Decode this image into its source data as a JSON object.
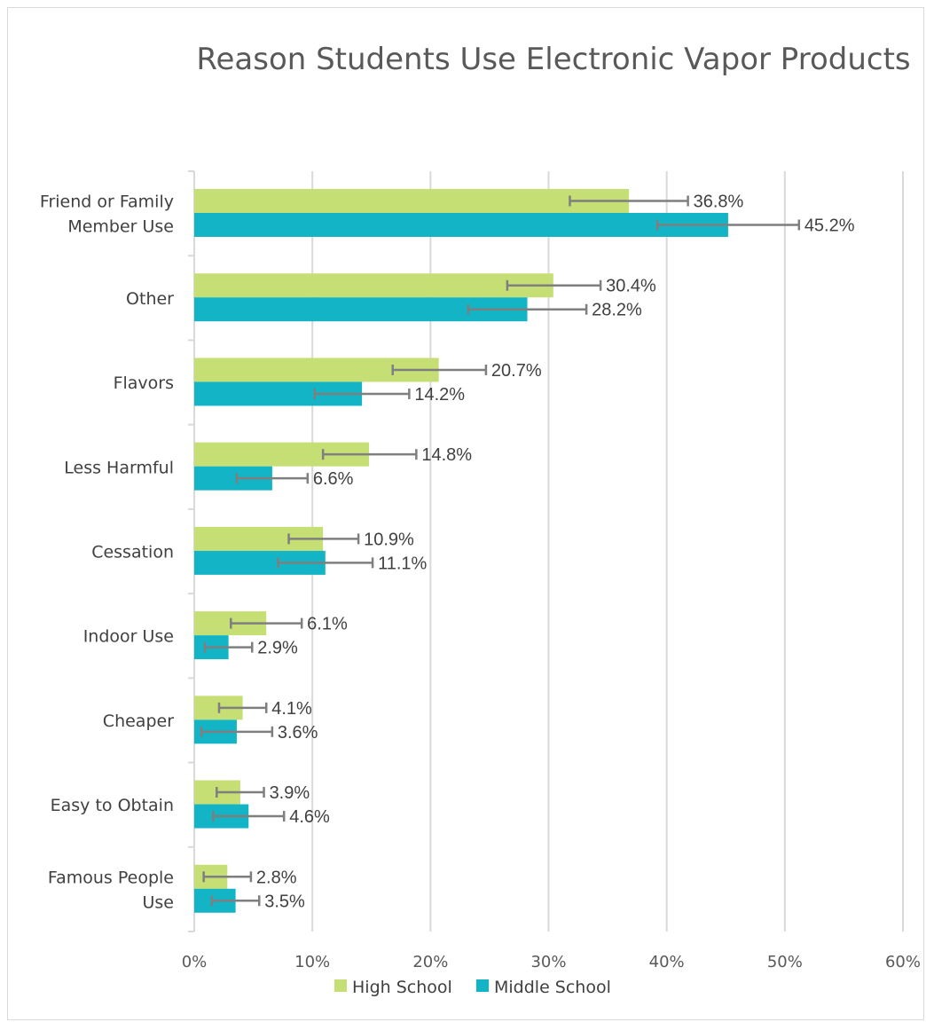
{
  "chart_data": {
    "type": "bar",
    "orientation": "horizontal",
    "title": "Reason Students Use Electronic Vapor Products",
    "xlabel": "",
    "ylabel": "",
    "xlim": [
      0,
      60
    ],
    "x_ticks": [
      "0%",
      "10%",
      "20%",
      "30%",
      "40%",
      "50%",
      "60%"
    ],
    "grid": "vertical",
    "legend": "bottom",
    "categories": [
      [
        "Friend or Family",
        "Member Use"
      ],
      [
        "Other"
      ],
      [
        "Flavors"
      ],
      [
        "Less Harmful"
      ],
      [
        "Cessation"
      ],
      [
        "Indoor Use"
      ],
      [
        "Cheaper"
      ],
      [
        "Easy to Obtain"
      ],
      [
        "Famous People",
        "Use"
      ]
    ],
    "series": [
      {
        "name": "High School",
        "color": "#c5df75",
        "values": [
          36.8,
          30.4,
          20.7,
          14.8,
          10.9,
          6.1,
          4.1,
          3.9,
          2.8
        ],
        "labels": [
          "36.8%",
          "30.4%",
          "20.7%",
          "14.8%",
          "10.9%",
          "6.1%",
          "4.1%",
          "3.9%",
          "2.8%"
        ],
        "error_low": [
          31.8,
          26.5,
          16.8,
          10.9,
          8.0,
          3.1,
          2.1,
          1.9,
          0.8
        ],
        "error_high": [
          41.8,
          34.4,
          24.7,
          18.8,
          13.9,
          9.1,
          6.1,
          5.9,
          4.8
        ]
      },
      {
        "name": "Middle School",
        "color": "#12b4c6",
        "values": [
          45.2,
          28.2,
          14.2,
          6.6,
          11.1,
          2.9,
          3.6,
          4.6,
          3.5
        ],
        "labels": [
          "45.2%",
          "28.2%",
          "14.2%",
          "6.6%",
          "11.1%",
          "2.9%",
          "3.6%",
          "4.6%",
          "3.5%"
        ],
        "error_low": [
          39.2,
          23.2,
          10.2,
          3.6,
          7.1,
          0.9,
          0.6,
          1.6,
          1.5
        ],
        "error_high": [
          51.2,
          33.2,
          18.2,
          9.6,
          15.1,
          4.9,
          6.6,
          7.6,
          5.5
        ]
      }
    ],
    "error_bar_color": "#7f7f7f",
    "grid_color": "#d9d9d9"
  }
}
